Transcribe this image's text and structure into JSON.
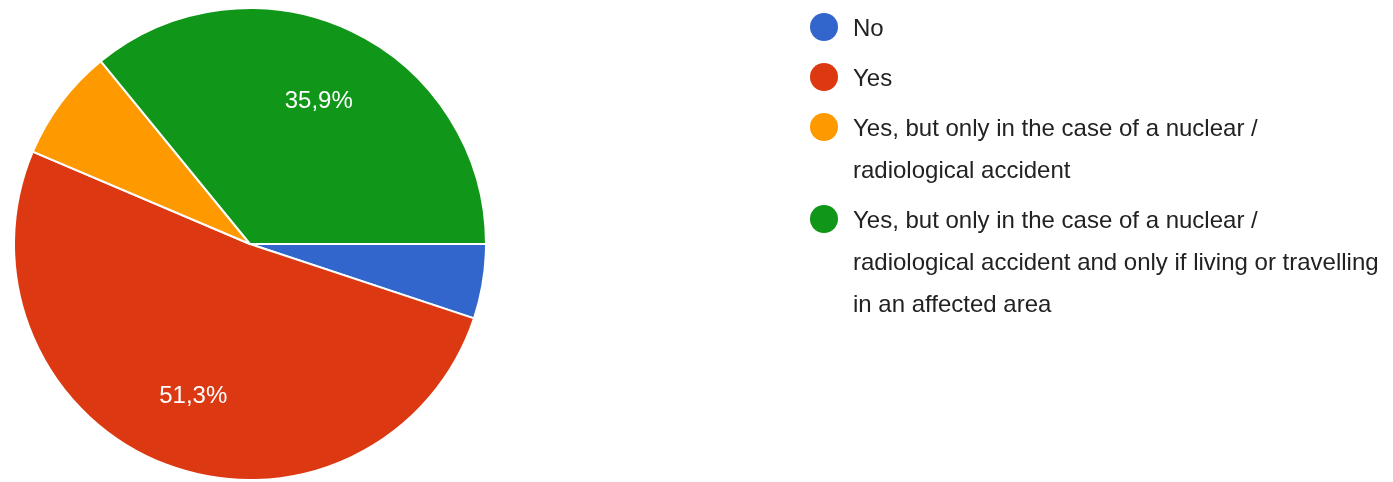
{
  "chart_data": {
    "type": "pie",
    "categories": [
      "No",
      "Yes",
      "Yes, but only in the case of a nuclear / radiological accident",
      "Yes, but only in the case of a nuclear / radiological accident and only if living or travelling in an affected area"
    ],
    "values": [
      5.1,
      51.3,
      7.7,
      35.9
    ],
    "colors": [
      "#3366cc",
      "#dc3912",
      "#ff9900",
      "#109618"
    ],
    "value_labels": [
      null,
      "51,3%",
      null,
      "35,9%"
    ],
    "legend": "right"
  }
}
